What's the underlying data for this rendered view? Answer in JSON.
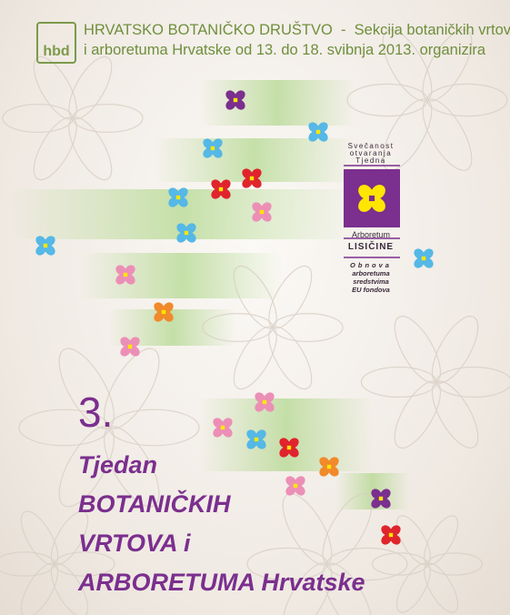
{
  "header": {
    "logo": "hbd",
    "line1": "HRVATSKO BOTANIČKO DRUŠTVO  -  Sekcija botaničkih vrtova",
    "line2": "i arboretuma Hrvatske od 13. do 18. svibnja 2013. organizira"
  },
  "badge": {
    "top_lines": [
      "Svečanost",
      "otvaranja",
      "Tjedna"
    ],
    "place": "Arboretum",
    "name": "LISIČINE",
    "bottom_lines": [
      "Obnova",
      "arboretuma",
      "sredstvima",
      "EU fondova"
    ]
  },
  "title": {
    "number": "3.",
    "lines": [
      "Tjedan",
      "BOTANIČKIH",
      "VRTOVA i",
      "ARBORETUMA Hrvatske"
    ]
  }
}
